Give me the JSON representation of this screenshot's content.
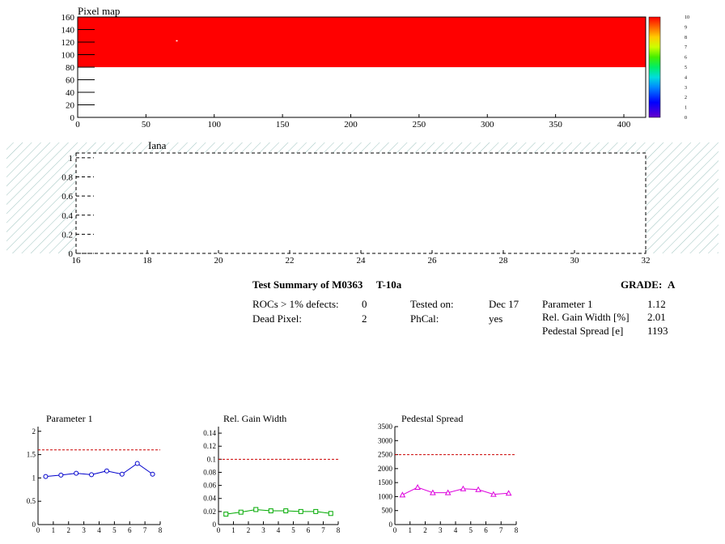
{
  "pixel_map": {
    "title": "Pixel map",
    "colors": {
      "occupied": "#ff0000",
      "hot_pixel": "#ffffff"
    },
    "palette_labels": [
      "10",
      "9",
      "8",
      "7",
      "6",
      "5",
      "4",
      "3",
      "2",
      "1",
      "0"
    ]
  },
  "iana": {
    "title": "Iana",
    "hatch_color": "#9ec3bf"
  },
  "summary": {
    "title": "Test Summary of M0363",
    "test": "T-10a",
    "grade_label": "GRADE:",
    "grade": "A",
    "rows": [
      {
        "label": "ROCs > 1% defects:",
        "value": "0"
      },
      {
        "label": "Dead Pixel:",
        "value": "2"
      }
    ],
    "mid_rows": [
      {
        "label": "Tested on:",
        "value": "Dec 17"
      },
      {
        "label": "PhCal:",
        "value": "yes"
      }
    ],
    "right_rows": [
      {
        "label": "Parameter 1",
        "value": "1.12"
      },
      {
        "label": "Rel. Gain Width [%]",
        "value": "2.01"
      },
      {
        "label": "Pedestal Spread [e]",
        "value": "1193"
      }
    ]
  },
  "chart_data": [
    {
      "type": "heatmap",
      "title": "Pixel map",
      "xlim": [
        0,
        416
      ],
      "ylim": [
        0,
        160
      ],
      "x_ticks": [
        0,
        50,
        100,
        150,
        200,
        250,
        300,
        350,
        400
      ],
      "y_ticks": [
        0,
        20,
        40,
        60,
        80,
        100,
        120,
        140,
        160
      ],
      "z_range": [
        0,
        10
      ],
      "filled_region": {
        "x": [
          0,
          416
        ],
        "y": [
          80,
          160
        ],
        "z": 10
      },
      "hot_pixel": {
        "x": 72,
        "y": 123
      }
    },
    {
      "type": "line",
      "title": "Iana",
      "xlim": [
        16,
        32
      ],
      "ylim": [
        0,
        1.05
      ],
      "x_ticks": [
        16,
        18,
        20,
        22,
        24,
        26,
        28,
        30,
        32
      ],
      "y_ticks": [
        0,
        0.2,
        0.4,
        0.6,
        0.8,
        1
      ],
      "series": []
    },
    {
      "type": "line",
      "title": "Parameter 1",
      "xlim": [
        0,
        8
      ],
      "ylim": [
        0,
        2.1
      ],
      "x_ticks": [
        0,
        1,
        2,
        3,
        4,
        5,
        6,
        7,
        8
      ],
      "y_ticks": [
        0,
        0.5,
        1,
        1.5,
        2
      ],
      "y_tick_labels": [
        "0",
        "0.5",
        "1",
        "1.5",
        "2"
      ],
      "threshold": 1.6,
      "color": "#0000cc",
      "marker": "circle",
      "x": [
        0.5,
        1.5,
        2.5,
        3.5,
        4.5,
        5.5,
        6.5,
        7.5
      ],
      "values": [
        1.03,
        1.06,
        1.1,
        1.07,
        1.15,
        1.08,
        1.31,
        1.08
      ]
    },
    {
      "type": "line",
      "title": "Rel. Gain Width",
      "xlim": [
        0,
        8
      ],
      "ylim": [
        0,
        0.15
      ],
      "x_ticks": [
        0,
        1,
        2,
        3,
        4,
        5,
        6,
        7,
        8
      ],
      "y_ticks": [
        0,
        0.02,
        0.04,
        0.06,
        0.08,
        0.1,
        0.12,
        0.14
      ],
      "y_tick_labels": [
        "0",
        "0.02",
        "0.04",
        "0.06",
        "0.08",
        "0.1",
        "0.12",
        "0.14"
      ],
      "threshold": 0.1,
      "color": "#00aa00",
      "marker": "square",
      "x": [
        0.5,
        1.5,
        2.5,
        3.5,
        4.5,
        5.5,
        6.5,
        7.5
      ],
      "values": [
        0.016,
        0.019,
        0.023,
        0.021,
        0.021,
        0.02,
        0.02,
        0.017
      ]
    },
    {
      "type": "line",
      "title": "Pedestal Spread",
      "xlim": [
        0,
        8
      ],
      "ylim": [
        0,
        3500
      ],
      "x_ticks": [
        0,
        1,
        2,
        3,
        4,
        5,
        6,
        7,
        8
      ],
      "y_ticks": [
        0,
        500,
        1000,
        1500,
        2000,
        2500,
        3000,
        3500
      ],
      "y_tick_labels": [
        "0",
        "500",
        "1000",
        "1500",
        "2000",
        "2500",
        "3000",
        "3500"
      ],
      "threshold": 2500,
      "color": "#dd00dd",
      "marker": "triangle",
      "x": [
        0.5,
        1.5,
        2.5,
        3.5,
        4.5,
        5.5,
        6.5,
        7.5
      ],
      "values": [
        1060,
        1330,
        1140,
        1140,
        1280,
        1250,
        1080,
        1120
      ]
    }
  ]
}
